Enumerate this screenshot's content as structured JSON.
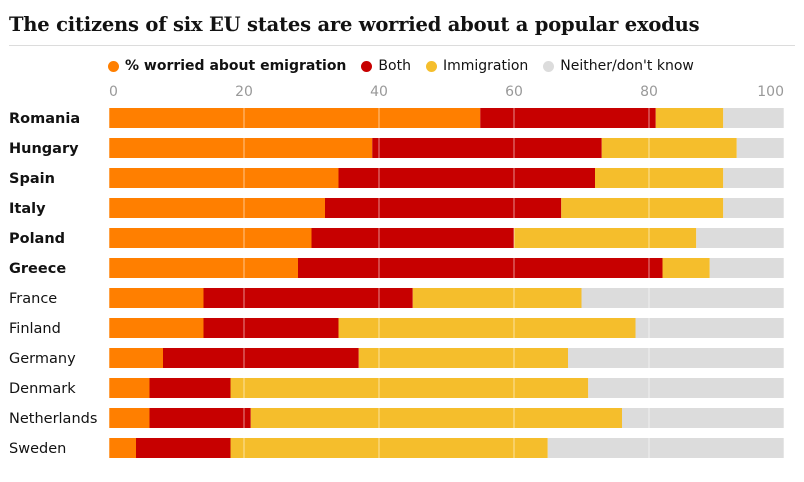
{
  "title": "The citizens of six EU states are worried about a popular exodus",
  "legend": [
    {
      "label": "% worried about emigration",
      "color": "#ff7f00",
      "bold": true
    },
    {
      "label": "Both",
      "color": "#c70000",
      "bold": false
    },
    {
      "label": "Immigration",
      "color": "#f5be2c",
      "bold": false
    },
    {
      "label": "Neither/don't know",
      "color": "#dcdcdc",
      "bold": false
    }
  ],
  "chart_data": {
    "type": "bar",
    "orientation": "horizontal",
    "stacked": true,
    "title": "The citizens of six EU states are worried about a popular exodus",
    "xlim": [
      0,
      100
    ],
    "xticks": [
      0,
      20,
      40,
      60,
      80,
      100
    ],
    "grid": true,
    "legend_position": "top-left",
    "categories": [
      "Romania",
      "Hungary",
      "Spain",
      "Italy",
      "Poland",
      "Greece",
      "France",
      "Finland",
      "Germany",
      "Denmark",
      "Netherlands",
      "Sweden"
    ],
    "bold_categories": [
      "Romania",
      "Hungary",
      "Spain",
      "Italy",
      "Poland",
      "Greece"
    ],
    "series": [
      {
        "name": "% worried about emigration",
        "color": "#ff7f00",
        "values": [
          55,
          39,
          34,
          32,
          30,
          28,
          14,
          14,
          8,
          6,
          6,
          4
        ]
      },
      {
        "name": "Both",
        "color": "#c70000",
        "values": [
          26,
          34,
          38,
          35,
          30,
          54,
          31,
          20,
          29,
          12,
          15,
          14
        ]
      },
      {
        "name": "Immigration",
        "color": "#f5be2c",
        "values": [
          10,
          20,
          19,
          24,
          27,
          7,
          25,
          44,
          31,
          53,
          55,
          47
        ]
      },
      {
        "name": "Neither/don't know",
        "color": "#dcdcdc",
        "values": [
          9,
          7,
          9,
          9,
          13,
          11,
          30,
          22,
          32,
          29,
          24,
          35
        ]
      }
    ]
  }
}
